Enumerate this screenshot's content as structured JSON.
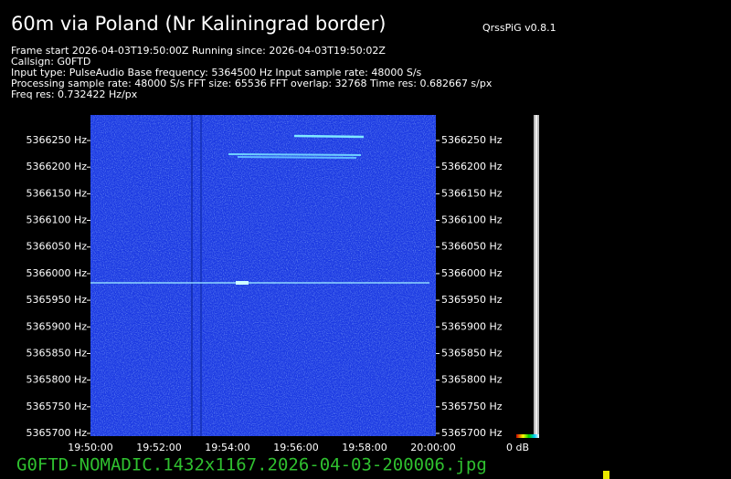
{
  "header": {
    "title": "60m via Poland (Nr Kaliningrad border)",
    "version": "QrssPiG v0.8.1",
    "info": [
      "Frame start 2026-04-03T19:50:00Z Running since: 2026-04-03T19:50:02Z",
      "Callsign: G0FTD",
      "Input type: PulseAudio Base frequency: 5364500 Hz Input sample rate: 48000 S/s",
      "Processing sample rate: 48000 S/s FFT size: 65536 FFT overlap: 32768 Time res: 0.682667 s/px",
      "Freq res: 0.732422 Hz/px"
    ]
  },
  "spectrogram": {
    "frequency_labels": [
      "5366250 Hz",
      "5366200 Hz",
      "5366150 Hz",
      "5366100 Hz",
      "5366050 Hz",
      "5366000 Hz",
      "5365950 Hz",
      "5365900 Hz",
      "5365850 Hz",
      "5365800 Hz",
      "5365750 Hz",
      "5365700 Hz"
    ],
    "time_labels": [
      "19:50:00",
      "19:52:00",
      "19:54:00",
      "19:56:00",
      "19:58:00",
      "20:00:00"
    ],
    "scale_label": "0 dB"
  },
  "footer": {
    "filename": "G0FTD-NOMADIC.1432x1167.2026-04-03-200006.jpg"
  }
}
